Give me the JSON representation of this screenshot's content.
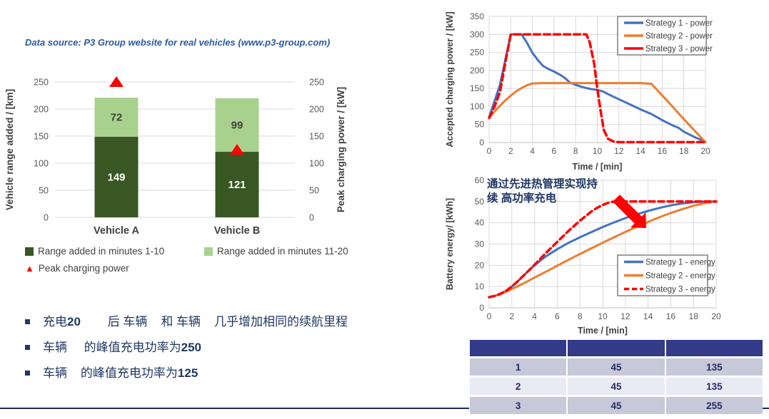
{
  "data_source_note": "Data source: P3 Group website for real vehicles (www.p3-group.com)",
  "colors": {
    "dark_green": "#385723",
    "light_green": "#a9d18e",
    "blue": "#4472c4",
    "orange": "#ed7d31",
    "red": "#fe0000",
    "navy_text": "#1f3864",
    "axis_text": "#595959",
    "axis_label": "#404040",
    "grid": "#d9d9d9",
    "table_header_bg": "#333a87",
    "table_row_gray": "#c7c8d8",
    "table_row_light": "#e9eaf3"
  },
  "bullets": [
    {
      "segments": [
        {
          "text": "充电",
          "bold": false
        },
        {
          "text": "20",
          "bold": true
        },
        {
          "text": "        后 车辆    和 车辆    几乎增加相同的续航里程",
          "bold": false
        }
      ]
    },
    {
      "segments": [
        {
          "text": "车辆     的峰值充电功率为",
          "bold": false
        },
        {
          "text": "250",
          "bold": true
        }
      ]
    },
    {
      "segments": [
        {
          "text": "车辆    的峰值充电功率为",
          "bold": false
        },
        {
          "text": "125",
          "bold": true
        }
      ]
    }
  ],
  "annotation": {
    "lines": [
      "通过先进热管理实现持",
      "续 高功率充电"
    ]
  },
  "table": {
    "headers": [
      "",
      "",
      ""
    ],
    "rows": [
      [
        "1",
        "45",
        "135"
      ],
      [
        "2",
        "45",
        "135"
      ],
      [
        "3",
        "45",
        "255"
      ]
    ]
  },
  "chart_data": [
    {
      "type": "bar",
      "title": "",
      "categories": [
        "Vehicle A",
        "Vehicle B"
      ],
      "series": [
        {
          "name": "Range added in minutes 1-10",
          "values": [
            149,
            121
          ],
          "color": "#385723"
        },
        {
          "name": "Range added in minutes 11-20",
          "values": [
            72,
            99
          ],
          "color": "#a9d18e"
        }
      ],
      "markers": {
        "name": "Peak charging power",
        "values": [
          250,
          125
        ],
        "color": "#fe0000",
        "shape": "triangle"
      },
      "ylabel_left": "Vehicle range added / [km]",
      "ylabel_right": "Peak charging power / [kW]",
      "ylim": [
        0,
        250
      ],
      "yticks": [
        0,
        50,
        100,
        150,
        200,
        250
      ],
      "grid": true,
      "legend_position": "bottom"
    },
    {
      "type": "line",
      "xlabel": "Time / [min]",
      "ylabel": "Accepted charging power / [kW]",
      "xlim": [
        0,
        20
      ],
      "ylim": [
        0,
        350
      ],
      "xticks": [
        0,
        2,
        4,
        6,
        8,
        10,
        12,
        14,
        16,
        18,
        20
      ],
      "yticks": [
        0,
        50,
        100,
        150,
        200,
        250,
        300,
        350
      ],
      "grid": true,
      "legend_position": "top-right",
      "series": [
        {
          "name": "Strategy 1 - power",
          "color": "#4472c4",
          "width": 3,
          "dash": null,
          "sample_dash": false,
          "points": [
            [
              0,
              70
            ],
            [
              1,
              160
            ],
            [
              2,
              300
            ],
            [
              3,
              300
            ],
            [
              3.5,
              277
            ],
            [
              4,
              249
            ],
            [
              4.5,
              229
            ],
            [
              5,
              212
            ],
            [
              5.5,
              204
            ],
            [
              6,
              197
            ],
            [
              6.5,
              189
            ],
            [
              7,
              179
            ],
            [
              7.5,
              166
            ],
            [
              8,
              160
            ],
            [
              8.5,
              155
            ],
            [
              9,
              151
            ],
            [
              9.5,
              148
            ],
            [
              10,
              146
            ],
            [
              10.5,
              142
            ],
            [
              11,
              134
            ],
            [
              12,
              120
            ],
            [
              13,
              106
            ],
            [
              14,
              92
            ],
            [
              15,
              79
            ],
            [
              16,
              62
            ],
            [
              17,
              47
            ],
            [
              17.5,
              41
            ],
            [
              18,
              30
            ],
            [
              19,
              15
            ],
            [
              20,
              2
            ]
          ]
        },
        {
          "name": "Strategy 2 - power",
          "color": "#ed7d31",
          "width": 3,
          "dash": null,
          "sample_dash": false,
          "points": [
            [
              0,
              70
            ],
            [
              0.5,
              86
            ],
            [
              1,
              102
            ],
            [
              1.5,
              117
            ],
            [
              2,
              130
            ],
            [
              2.5,
              142
            ],
            [
              3,
              151
            ],
            [
              3.5,
              159
            ],
            [
              4,
              164
            ],
            [
              5,
              165
            ],
            [
              14,
              165
            ],
            [
              15,
              163
            ],
            [
              16,
              131
            ],
            [
              17,
              98
            ],
            [
              18,
              65
            ],
            [
              19,
              33
            ],
            [
              20,
              1
            ]
          ]
        },
        {
          "name": "Strategy 3 - power",
          "color": "#fe0000",
          "width": 3.5,
          "dash": "9 5",
          "sample_dash": false,
          "points": [
            [
              0,
              68
            ],
            [
              0.5,
              100
            ],
            [
              1,
              140
            ],
            [
              1.5,
              222
            ],
            [
              2,
              300
            ],
            [
              9,
              300
            ],
            [
              9.3,
              278
            ],
            [
              9.7,
              220
            ],
            [
              10,
              150
            ],
            [
              10.3,
              90
            ],
            [
              10.6,
              35
            ],
            [
              11,
              10
            ],
            [
              11.5,
              3
            ],
            [
              12,
              1
            ],
            [
              20,
              1
            ]
          ]
        }
      ]
    },
    {
      "type": "line",
      "xlabel": "Time / [min]",
      "ylabel": "Battery energy/ [kWh]",
      "xlim": [
        0,
        20
      ],
      "ylim": [
        0,
        60
      ],
      "xticks": [
        0,
        2,
        4,
        6,
        8,
        10,
        12,
        14,
        16,
        18,
        20
      ],
      "yticks": [
        0,
        10,
        20,
        30,
        40,
        50,
        60
      ],
      "grid": true,
      "legend_position": "bottom-right",
      "series": [
        {
          "name": "Strategy 1 - energy",
          "color": "#4472c4",
          "width": 3,
          "dash": null,
          "sample_dash": false,
          "points": [
            [
              0,
              5
            ],
            [
              0.5,
              5.6
            ],
            [
              1,
              6.6
            ],
            [
              1.5,
              8
            ],
            [
              2,
              10
            ],
            [
              2.5,
              12.4
            ],
            [
              3,
              15
            ],
            [
              3.5,
              17.6
            ],
            [
              4,
              20
            ],
            [
              4.5,
              22.2
            ],
            [
              5,
              24.2
            ],
            [
              6,
              27.6
            ],
            [
              7,
              30.6
            ],
            [
              8,
              33.2
            ],
            [
              9,
              35.6
            ],
            [
              10,
              38
            ],
            [
              11,
              40.2
            ],
            [
              12,
              42.2
            ],
            [
              13,
              44
            ],
            [
              14,
              45.6
            ],
            [
              15,
              47
            ],
            [
              16,
              48.2
            ],
            [
              17,
              49.1
            ],
            [
              18,
              49.7
            ],
            [
              19,
              50
            ],
            [
              20,
              50
            ]
          ]
        },
        {
          "name": "Strategy 2 - energy",
          "color": "#ed7d31",
          "width": 3,
          "dash": null,
          "sample_dash": false,
          "points": [
            [
              0,
              5
            ],
            [
              1,
              6.4
            ],
            [
              2,
              8.8
            ],
            [
              3,
              11.4
            ],
            [
              4,
              14.2
            ],
            [
              5,
              17
            ],
            [
              6,
              19.8
            ],
            [
              7,
              22.6
            ],
            [
              8,
              25.3
            ],
            [
              9,
              28
            ],
            [
              10,
              30.6
            ],
            [
              11,
              33.2
            ],
            [
              12,
              35.7
            ],
            [
              13,
              38.1
            ],
            [
              14,
              40.4
            ],
            [
              15,
              42.6
            ],
            [
              16,
              44.6
            ],
            [
              17,
              46.4
            ],
            [
              18,
              48
            ],
            [
              19,
              49.2
            ],
            [
              20,
              50
            ]
          ]
        },
        {
          "name": "Strategy 3 - energy",
          "color": "#fe0000",
          "width": 3.5,
          "dash": "8 5",
          "sample_dash": true,
          "points": [
            [
              0,
              5
            ],
            [
              0.5,
              5.6
            ],
            [
              1,
              6.6
            ],
            [
              1.5,
              8
            ],
            [
              2,
              10
            ],
            [
              2.5,
              12.4
            ],
            [
              3,
              15
            ],
            [
              3.5,
              17.6
            ],
            [
              4,
              20.2
            ],
            [
              4.5,
              23
            ],
            [
              5,
              25.8
            ],
            [
              6,
              31
            ],
            [
              7,
              36.2
            ],
            [
              8,
              41
            ],
            [
              9,
              45.3
            ],
            [
              9.5,
              47
            ],
            [
              10,
              48.4
            ],
            [
              10.5,
              49.4
            ],
            [
              11,
              50
            ],
            [
              12,
              50
            ],
            [
              20,
              50
            ]
          ]
        }
      ]
    }
  ]
}
